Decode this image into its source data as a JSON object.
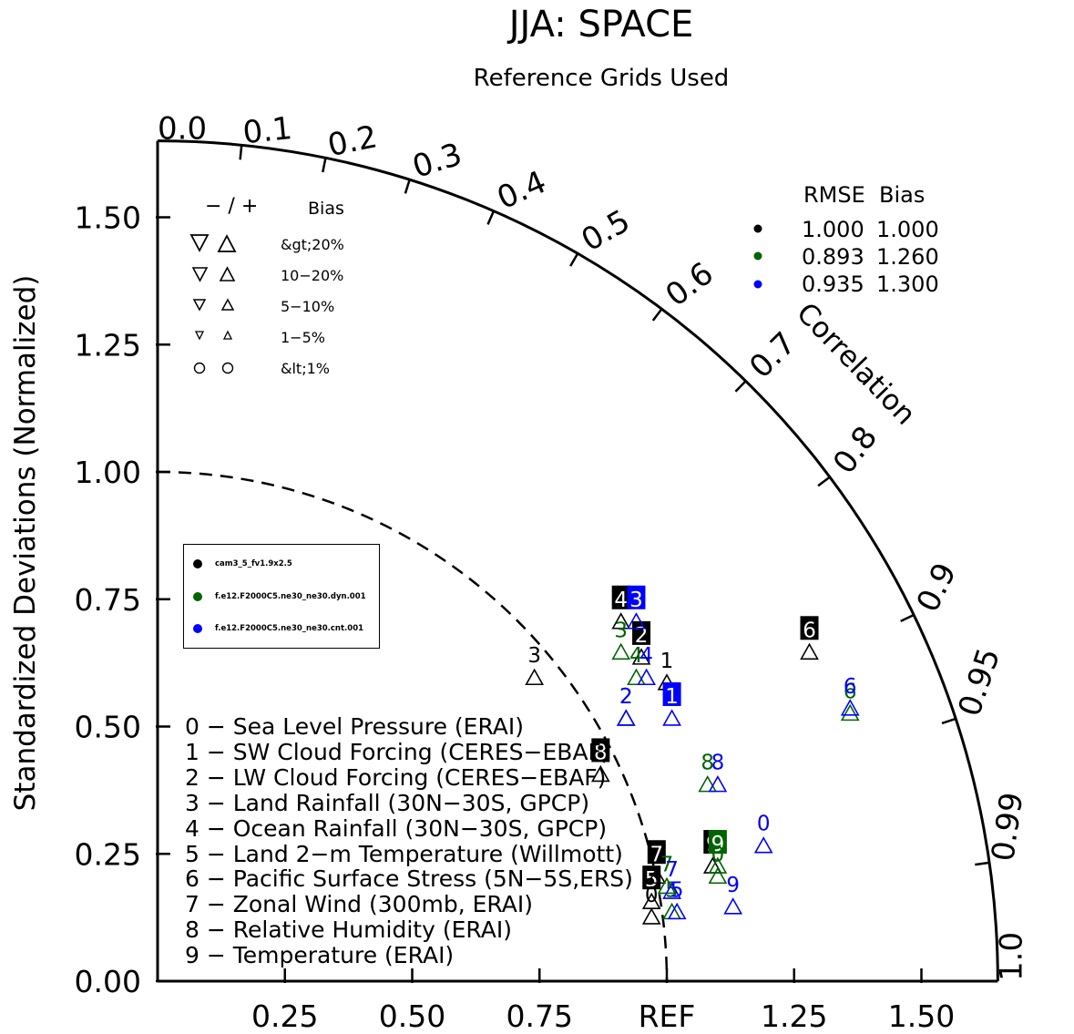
{
  "title": "JJA: SPACE",
  "subtitle": "Reference Grids Used",
  "y_axis_label": "Standardized Deviations (Normalized)",
  "corr_axis_label": "Correlation",
  "ref_label": "REF",
  "bias_legend": {
    "header_signs": "− / +",
    "header_bias": "Bias",
    "rows": [
      "&gt;20%",
      "10−20%",
      "5−10%",
      "1−5%",
      "&lt;1%"
    ]
  },
  "rmse_table": {
    "header": "RMSE  Bias",
    "rows": [
      {
        "rmse": "1.000",
        "bias": "1.000",
        "color": "#000000"
      },
      {
        "rmse": "0.893",
        "bias": "1.260",
        "color": "#006400"
      },
      {
        "rmse": "0.935",
        "bias": "1.300",
        "color": "#0000ff"
      }
    ]
  },
  "cases_legend": [
    {
      "name": "cam3_5_fv1.9x2.5",
      "color": "#000000"
    },
    {
      "name": "f.e12.F2000C5.ne30_ne30.dyn.001",
      "color": "#006400"
    },
    {
      "name": "f.e12.F2000C5.ne30_ne30.cnt.001",
      "color": "#0000ff"
    }
  ],
  "variables": [
    "0 − Sea Level Pressure (ERAI)",
    "1 − SW Cloud Forcing (CERES−EBAF)",
    "2 − LW Cloud Forcing (CERES−EBAF)",
    "3 − Land Rainfall (30N−30S, GPCP)",
    "4 − Ocean Rainfall (30N−30S, GPCP)",
    "5 − Land 2−m Temperature (Willmott)",
    "6 − Pacific Surface Stress (5N−5S,ERS)",
    "7 − Zonal Wind (300mb, ERAI)",
    "8 − Relative Humidity (ERAI)",
    "9 − Temperature (ERAI)"
  ],
  "chart_data": {
    "type": "scatter",
    "title": "JJA: SPACE",
    "subtitle": "Reference Grids Used",
    "ylabel": "Standardized Deviations (Normalized)",
    "angular_label": "Correlation",
    "radial_max": 1.65,
    "x_ticks": [
      "0.25",
      "0.50",
      "0.75",
      "REF",
      "1.25",
      "1.50"
    ],
    "y_ticks": [
      "0.00",
      "0.25",
      "0.50",
      "0.75",
      "1.00",
      "1.25",
      "1.50"
    ],
    "corr_ticks": [
      "0.0",
      "0.1",
      "0.2",
      "0.3",
      "0.4",
      "0.5",
      "0.6",
      "0.7",
      "0.8",
      "0.9",
      "0.95",
      "0.99",
      "1.0"
    ],
    "series": [
      {
        "name": "cam3_5_fv1.9x2.5",
        "color": "#000000",
        "points": [
          {
            "var": "1",
            "x": 1.0,
            "y": 0.63,
            "box": false
          },
          {
            "var": "2",
            "x": 0.95,
            "y": 0.68,
            "box": true
          },
          {
            "var": "3",
            "x": 0.74,
            "y": 0.64,
            "box": false
          },
          {
            "var": "4",
            "x": 0.91,
            "y": 0.75,
            "box": true
          },
          {
            "var": "5",
            "x": 0.97,
            "y": 0.2,
            "box": true
          },
          {
            "var": "6",
            "x": 1.28,
            "y": 0.69,
            "box": true
          },
          {
            "var": "7",
            "x": 0.98,
            "y": 0.25,
            "box": true
          },
          {
            "var": "8",
            "x": 0.87,
            "y": 0.45,
            "box": true
          },
          {
            "var": "9",
            "x": 1.09,
            "y": 0.27,
            "box": true
          },
          {
            "var": "0",
            "x": 0.97,
            "y": 0.17,
            "box": false
          }
        ]
      },
      {
        "name": "f.e12.F2000C5.ne30_ne30.dyn.001",
        "color": "#006400",
        "points": [
          {
            "var": "2",
            "x": 0.92,
            "y": 0.56,
            "box": false
          },
          {
            "var": "3",
            "x": 0.91,
            "y": 0.69,
            "box": false
          },
          {
            "var": "4",
            "x": 0.94,
            "y": 0.64,
            "box": false
          },
          {
            "var": "5",
            "x": 1.01,
            "y": 0.18,
            "box": false
          },
          {
            "var": "6",
            "x": 1.36,
            "y": 0.57,
            "box": false
          },
          {
            "var": "7",
            "x": 1.0,
            "y": 0.23,
            "box": false
          },
          {
            "var": "8",
            "x": 1.08,
            "y": 0.43,
            "box": false
          },
          {
            "var": "9",
            "x": 1.1,
            "y": 0.27,
            "box": true
          },
          {
            "var": "0",
            "x": 1.1,
            "y": 0.25,
            "box": false
          }
        ]
      },
      {
        "name": "f.e12.F2000C5.ne30_ne30.cnt.001",
        "color": "#0000ff",
        "points": [
          {
            "var": "1",
            "x": 1.01,
            "y": 0.56,
            "box": true
          },
          {
            "var": "2",
            "x": 0.92,
            "y": 0.56,
            "box": false
          },
          {
            "var": "3",
            "x": 0.94,
            "y": 0.75,
            "box": true
          },
          {
            "var": "4",
            "x": 0.96,
            "y": 0.64,
            "box": false
          },
          {
            "var": "5",
            "x": 1.02,
            "y": 0.18,
            "box": false
          },
          {
            "var": "6",
            "x": 1.36,
            "y": 0.58,
            "box": false
          },
          {
            "var": "7",
            "x": 1.01,
            "y": 0.22,
            "box": false
          },
          {
            "var": "8",
            "x": 1.1,
            "y": 0.43,
            "box": false
          },
          {
            "var": "9",
            "x": 1.13,
            "y": 0.19,
            "box": false
          },
          {
            "var": "0",
            "x": 1.19,
            "y": 0.31,
            "box": false
          }
        ]
      }
    ]
  }
}
